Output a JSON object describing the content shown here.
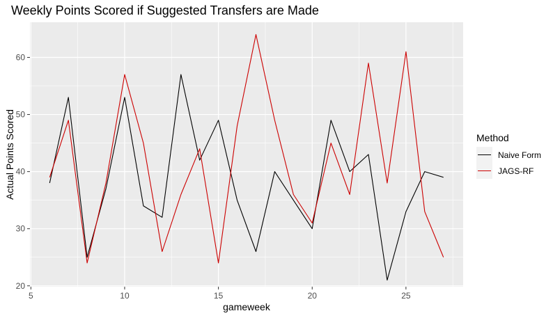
{
  "chart_data": {
    "type": "line",
    "title": "Weekly Points Scored if Suggested Transfers are Made",
    "xlabel": "gameweek",
    "ylabel": "Actual Points Scored",
    "xlim": [
      4.95,
      28.05
    ],
    "ylim": [
      19.85,
      66.15
    ],
    "x_ticks": [
      5,
      10,
      15,
      20,
      25
    ],
    "y_ticks": [
      20,
      30,
      40,
      50,
      60
    ],
    "grid": true,
    "legend": {
      "title": "Method",
      "position": "right"
    },
    "x": [
      6,
      7,
      8,
      9,
      10,
      11,
      12,
      13,
      14,
      15,
      16,
      17,
      18,
      19,
      20,
      21,
      22,
      23,
      24,
      25,
      26,
      27
    ],
    "series": [
      {
        "name": "Naive Form",
        "color": "#000000",
        "values": [
          38,
          53,
          25,
          37,
          53,
          34,
          32,
          57,
          42,
          49,
          35,
          26,
          40,
          35,
          30,
          49,
          40,
          43,
          21,
          33,
          40,
          39
        ]
      },
      {
        "name": "JAGS-RF",
        "color": "#cc0000",
        "values": [
          39,
          49,
          24,
          38,
          57,
          45,
          26,
          36,
          44,
          24,
          48,
          64,
          49,
          36,
          31,
          45,
          36,
          59,
          38,
          61,
          33,
          25
        ]
      }
    ]
  }
}
